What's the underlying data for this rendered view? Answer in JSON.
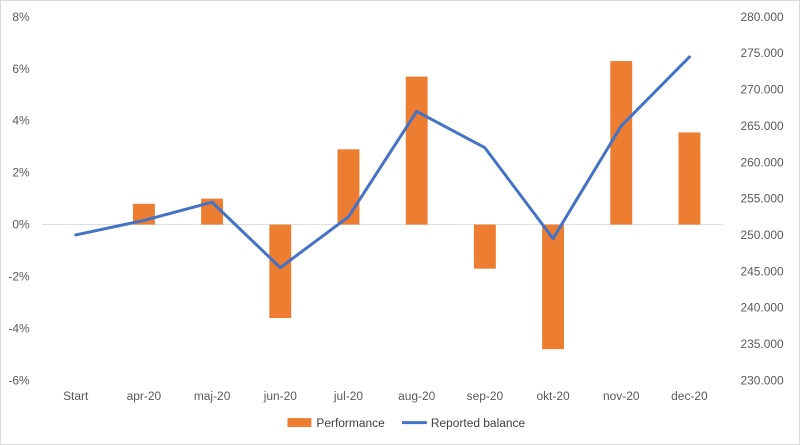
{
  "chart_data": {
    "type": "bar-line-combo",
    "categories": [
      "Start",
      "apr-20",
      "maj-20",
      "jun-20",
      "jul-20",
      "aug-20",
      "sep-20",
      "okt-20",
      "nov-20",
      "dec-20"
    ],
    "series": [
      {
        "name": "Performance",
        "type": "bar",
        "axis": "left",
        "color": "#ED7D31",
        "values": [
          null,
          0.8,
          1.0,
          -3.6,
          2.9,
          5.7,
          -1.7,
          -4.8,
          6.3,
          3.55
        ]
      },
      {
        "name": "Reported balance",
        "type": "line",
        "axis": "right",
        "color": "#4472C4",
        "values": [
          250000,
          252000,
          254500,
          245500,
          252500,
          267000,
          262000,
          249500,
          265000,
          274500
        ]
      }
    ],
    "left_axis": {
      "min": -6,
      "max": 8,
      "step": 2,
      "tick_labels": [
        "-6%",
        "-4%",
        "-2%",
        "0%",
        "2%",
        "4%",
        "6%",
        "8%"
      ]
    },
    "right_axis": {
      "min": 230000,
      "max": 280000,
      "step": 5000,
      "tick_labels": [
        "230.000",
        "235.000",
        "240.000",
        "245.000",
        "250.000",
        "255.000",
        "260.000",
        "265.000",
        "270.000",
        "275.000",
        "280.000"
      ]
    },
    "legend": {
      "placement": "bottom-center",
      "items": [
        {
          "label": "Performance",
          "marker": "bar",
          "color": "#ED7D31"
        },
        {
          "label": "Reported balance",
          "marker": "line",
          "color": "#4472C4"
        }
      ]
    },
    "grid": false
  }
}
